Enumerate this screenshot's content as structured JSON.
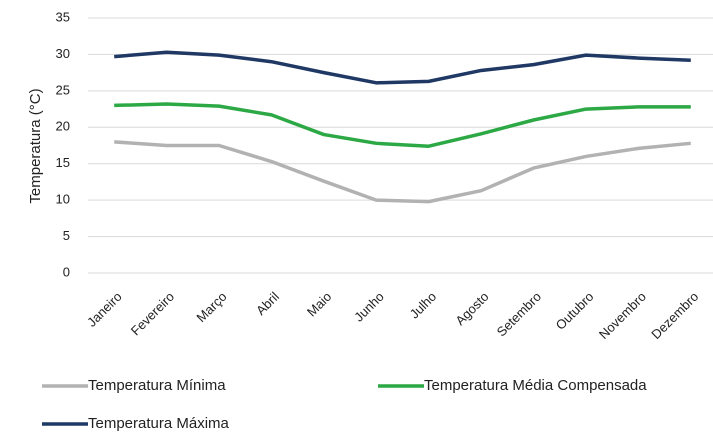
{
  "chart_data": {
    "type": "line",
    "y_label": "Temperatura  (°C)",
    "categories": [
      "Janeiro",
      "Fevereiro",
      "Março",
      "Abril",
      "Maio",
      "Junho",
      "Julho",
      "Agosto",
      "Setembro",
      "Outubro",
      "Novembro",
      "Dezembro"
    ],
    "series": [
      {
        "name": "Temperatura Mínima",
        "color": "#b2b2b2",
        "values": [
          18.0,
          17.5,
          17.5,
          15.3,
          12.6,
          10.0,
          9.8,
          11.3,
          14.4,
          16.0,
          17.1,
          17.8
        ]
      },
      {
        "name": "Temperatura Média Compensada",
        "color": "#2ca845",
        "values": [
          23.0,
          23.2,
          22.9,
          21.7,
          19.0,
          17.8,
          17.4,
          19.1,
          21.0,
          22.5,
          22.8,
          22.8
        ]
      },
      {
        "name": "Temperatura Máxima",
        "color": "#1f3864",
        "values": [
          29.7,
          30.3,
          29.9,
          29.0,
          27.5,
          26.1,
          26.3,
          27.8,
          28.6,
          29.9,
          29.5,
          29.2
        ]
      }
    ],
    "ylim": [
      0,
      35
    ],
    "yticks": [
      0,
      5,
      10,
      15,
      20,
      25,
      30,
      35
    ],
    "grid": true
  }
}
